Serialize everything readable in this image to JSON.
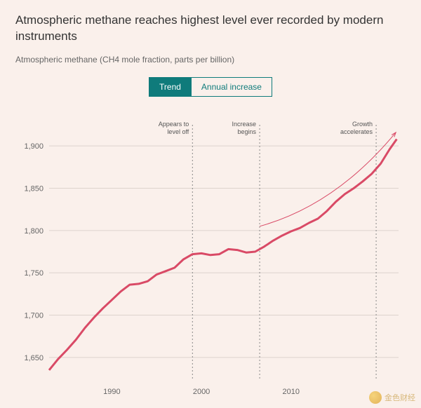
{
  "title": "Atmospheric methane reaches highest level ever recorded by modern instruments",
  "subtitle": "Atmospheric methane (CH4 mole fraction, parts per billion)",
  "tabs": {
    "active": "Trend",
    "inactive": "Annual increase"
  },
  "chart": {
    "type": "line",
    "background_color": "#faf0eb",
    "line_color": "#d94a66",
    "line_width": 3,
    "grid_color": "#ddd3cd",
    "vline_color": "#888888",
    "text_color": "#666666",
    "annot_color": "#555555",
    "xlim": [
      1983,
      2022
    ],
    "ylim": [
      1625,
      1925
    ],
    "xticks": [
      1990,
      2000,
      2010
    ],
    "yticks": [
      1650,
      1700,
      1750,
      1800,
      1850,
      1900
    ],
    "ytick_labels": [
      "1,650",
      "1,700",
      "1,750",
      "1,800",
      "1,850",
      "1,900"
    ],
    "label_fontsize": 11,
    "annot_fontsize": 9,
    "vlines": [
      {
        "x": 1999,
        "label_lines": [
          "Appears to",
          "level off"
        ]
      },
      {
        "x": 2006.5,
        "label_lines": [
          "Increase",
          "begins"
        ]
      },
      {
        "x": 2019.5,
        "label_lines": [
          "Growth",
          "accelerates"
        ]
      }
    ],
    "arrow": {
      "start": [
        2006.5,
        1805
      ],
      "ctrl": [
        2015,
        1830
      ],
      "end": [
        2021.7,
        1916
      ]
    },
    "series": [
      [
        1983,
        1635
      ],
      [
        1984,
        1648
      ],
      [
        1985,
        1659
      ],
      [
        1986,
        1671
      ],
      [
        1987,
        1685
      ],
      [
        1988,
        1697
      ],
      [
        1989,
        1708
      ],
      [
        1990,
        1718
      ],
      [
        1991,
        1728
      ],
      [
        1992,
        1736
      ],
      [
        1993,
        1737
      ],
      [
        1994,
        1740
      ],
      [
        1995,
        1748
      ],
      [
        1996,
        1752
      ],
      [
        1997,
        1756
      ],
      [
        1998,
        1766
      ],
      [
        1999,
        1772
      ],
      [
        2000,
        1773
      ],
      [
        2001,
        1771
      ],
      [
        2002,
        1772
      ],
      [
        2003,
        1778
      ],
      [
        2004,
        1777
      ],
      [
        2005,
        1774
      ],
      [
        2006,
        1775
      ],
      [
        2007,
        1781
      ],
      [
        2008,
        1788
      ],
      [
        2009,
        1794
      ],
      [
        2010,
        1799
      ],
      [
        2011,
        1803
      ],
      [
        2012,
        1809
      ],
      [
        2013,
        1814
      ],
      [
        2014,
        1823
      ],
      [
        2015,
        1834
      ],
      [
        2016,
        1843
      ],
      [
        2017,
        1850
      ],
      [
        2018,
        1858
      ],
      [
        2019,
        1867
      ],
      [
        2020,
        1879
      ],
      [
        2021,
        1896
      ],
      [
        2021.8,
        1908
      ]
    ]
  },
  "watermark": "金色财经"
}
